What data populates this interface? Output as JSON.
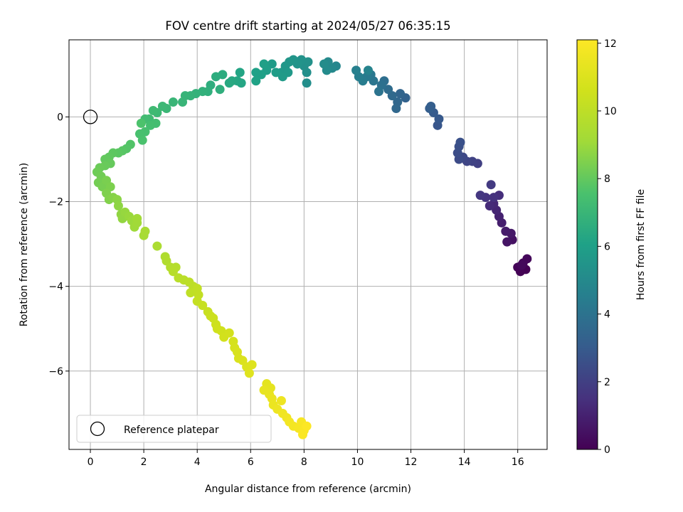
{
  "chart_data": {
    "type": "scatter",
    "title": "FOV centre drift starting at 2024/05/27 06:35:15",
    "xlabel": "Angular distance from reference (arcmin)",
    "ylabel": "Rotation from reference (arcmin)",
    "xlim": [
      -0.8,
      17.1
    ],
    "ylim": [
      -7.85,
      1.82
    ],
    "xticks": [
      0,
      2,
      4,
      6,
      8,
      10,
      12,
      14,
      16
    ],
    "yticks": [
      -6,
      -4,
      -2,
      0
    ],
    "grid": true,
    "legend": {
      "placement": "lower-left",
      "entries": [
        "Reference platepar"
      ]
    },
    "colorbar": {
      "label": "Hours from first FF file",
      "range": [
        0,
        12.1
      ],
      "ticks": [
        0,
        2,
        4,
        6,
        8,
        10,
        12
      ],
      "colormap": "viridis"
    },
    "reference_point": {
      "x": 0,
      "y": 0
    },
    "series": [
      {
        "points": [
          [
            16.3,
            -3.6,
            0.0
          ],
          [
            16.1,
            -3.65,
            0.05
          ],
          [
            16.0,
            -3.55,
            0.1
          ],
          [
            16.2,
            -3.45,
            0.15
          ],
          [
            16.35,
            -3.35,
            0.2
          ],
          [
            16.15,
            -3.5,
            0.25
          ],
          [
            15.8,
            -2.9,
            0.5
          ],
          [
            15.6,
            -2.95,
            0.6
          ],
          [
            15.75,
            -2.75,
            0.7
          ],
          [
            15.55,
            -2.7,
            0.8
          ],
          [
            15.4,
            -2.5,
            0.9
          ],
          [
            15.3,
            -2.35,
            1.0
          ],
          [
            15.2,
            -2.2,
            1.1
          ],
          [
            15.1,
            -2.05,
            1.2
          ],
          [
            14.95,
            -2.1,
            1.3
          ],
          [
            15.3,
            -1.85,
            1.4
          ],
          [
            15.1,
            -1.9,
            1.5
          ],
          [
            14.8,
            -1.9,
            1.6
          ],
          [
            14.6,
            -1.85,
            1.7
          ],
          [
            15.0,
            -1.6,
            1.8
          ],
          [
            14.5,
            -1.1,
            2.0
          ],
          [
            14.3,
            -1.05,
            2.1
          ],
          [
            14.1,
            -1.05,
            2.2
          ],
          [
            13.95,
            -0.95,
            2.3
          ],
          [
            13.8,
            -1.0,
            2.4
          ],
          [
            13.75,
            -0.85,
            2.5
          ],
          [
            13.8,
            -0.7,
            2.55
          ],
          [
            13.85,
            -0.6,
            2.6
          ],
          [
            13.0,
            -0.2,
            2.8
          ],
          [
            13.05,
            -0.05,
            2.9
          ],
          [
            12.85,
            0.1,
            3.0
          ],
          [
            12.7,
            0.2,
            3.1
          ],
          [
            12.75,
            0.25,
            3.15
          ],
          [
            11.8,
            0.45,
            3.3
          ],
          [
            11.6,
            0.55,
            3.4
          ],
          [
            11.5,
            0.35,
            3.5
          ],
          [
            11.45,
            0.2,
            3.55
          ],
          [
            11.3,
            0.5,
            3.6
          ],
          [
            11.15,
            0.65,
            3.7
          ],
          [
            11.0,
            0.85,
            3.8
          ],
          [
            10.9,
            0.75,
            3.9
          ],
          [
            10.8,
            0.6,
            4.0
          ],
          [
            10.6,
            0.85,
            4.1
          ],
          [
            10.5,
            1.0,
            4.2
          ],
          [
            10.35,
            0.95,
            4.3
          ],
          [
            10.2,
            0.85,
            4.4
          ],
          [
            10.05,
            0.95,
            4.5
          ],
          [
            9.95,
            1.1,
            4.6
          ],
          [
            10.4,
            1.1,
            4.7
          ],
          [
            9.2,
            1.2,
            4.85
          ],
          [
            9.05,
            1.15,
            4.95
          ],
          [
            8.9,
            1.3,
            5.0
          ],
          [
            8.85,
            1.1,
            5.05
          ],
          [
            8.75,
            1.25,
            5.1
          ],
          [
            8.1,
            0.8,
            5.2
          ],
          [
            8.1,
            1.05,
            5.25
          ],
          [
            8.0,
            1.2,
            5.3
          ],
          [
            8.15,
            1.3,
            5.35
          ],
          [
            7.9,
            1.35,
            5.4
          ],
          [
            7.75,
            1.25,
            5.45
          ],
          [
            7.6,
            1.35,
            5.5
          ],
          [
            7.45,
            1.3,
            5.55
          ],
          [
            7.3,
            1.2,
            5.6
          ],
          [
            7.15,
            1.05,
            5.65
          ],
          [
            7.4,
            1.05,
            5.7
          ],
          [
            7.2,
            0.95,
            5.75
          ],
          [
            6.8,
            1.25,
            5.8
          ],
          [
            6.95,
            1.05,
            5.85
          ],
          [
            6.6,
            1.1,
            5.9
          ],
          [
            6.5,
            1.25,
            5.95
          ],
          [
            6.4,
            1.0,
            6.0
          ],
          [
            6.2,
            1.05,
            6.05
          ],
          [
            6.2,
            0.85,
            6.1
          ],
          [
            5.6,
            1.05,
            6.2
          ],
          [
            5.65,
            0.8,
            6.25
          ],
          [
            5.5,
            0.85,
            6.3
          ],
          [
            5.3,
            0.85,
            6.35
          ],
          [
            5.2,
            0.8,
            6.4
          ],
          [
            4.95,
            1.0,
            6.5
          ],
          [
            4.7,
            0.95,
            6.55
          ],
          [
            4.5,
            0.75,
            6.6
          ],
          [
            4.85,
            0.65,
            6.65
          ],
          [
            4.4,
            0.6,
            6.7
          ],
          [
            4.2,
            0.6,
            6.75
          ],
          [
            3.95,
            0.55,
            6.8
          ],
          [
            3.75,
            0.5,
            6.85
          ],
          [
            3.55,
            0.5,
            6.9
          ],
          [
            3.45,
            0.35,
            6.95
          ],
          [
            3.1,
            0.35,
            7.0
          ],
          [
            2.85,
            0.2,
            7.05
          ],
          [
            2.7,
            0.25,
            7.1
          ],
          [
            2.5,
            0.1,
            7.15
          ],
          [
            2.35,
            0.15,
            7.2
          ],
          [
            2.2,
            -0.05,
            7.25
          ],
          [
            2.05,
            -0.05,
            7.3
          ],
          [
            2.45,
            -0.15,
            7.35
          ],
          [
            2.25,
            -0.2,
            7.4
          ],
          [
            2.05,
            -0.35,
            7.45
          ],
          [
            1.85,
            -0.4,
            7.5
          ],
          [
            1.95,
            -0.55,
            7.55
          ],
          [
            1.9,
            -0.15,
            7.6
          ],
          [
            1.5,
            -0.65,
            7.7
          ],
          [
            1.35,
            -0.75,
            7.75
          ],
          [
            1.2,
            -0.8,
            7.8
          ],
          [
            1.05,
            -0.85,
            7.85
          ],
          [
            0.85,
            -0.85,
            7.9
          ],
          [
            0.7,
            -0.95,
            7.95
          ],
          [
            0.55,
            -1.0,
            8.0
          ],
          [
            0.75,
            -1.1,
            8.05
          ],
          [
            0.55,
            -1.15,
            8.1
          ],
          [
            0.35,
            -1.2,
            8.15
          ],
          [
            0.25,
            -1.3,
            8.2
          ],
          [
            0.4,
            -1.4,
            8.25
          ],
          [
            0.3,
            -1.55,
            8.3
          ],
          [
            0.45,
            -1.65,
            8.35
          ],
          [
            0.6,
            -1.5,
            8.4
          ],
          [
            0.75,
            -1.65,
            8.45
          ],
          [
            0.6,
            -1.8,
            8.5
          ],
          [
            0.7,
            -1.95,
            8.55
          ],
          [
            0.85,
            -1.9,
            8.6
          ],
          [
            1.0,
            -1.95,
            8.7
          ],
          [
            1.05,
            -2.1,
            8.75
          ],
          [
            1.15,
            -2.3,
            8.8
          ],
          [
            1.2,
            -2.4,
            8.85
          ],
          [
            1.3,
            -2.25,
            8.9
          ],
          [
            1.45,
            -2.35,
            8.95
          ],
          [
            1.55,
            -2.45,
            9.0
          ],
          [
            1.65,
            -2.6,
            9.05
          ],
          [
            1.75,
            -2.5,
            9.1
          ],
          [
            1.75,
            -2.4,
            9.15
          ],
          [
            2.0,
            -2.8,
            9.3
          ],
          [
            2.05,
            -2.7,
            9.35
          ],
          [
            2.5,
            -3.05,
            9.45
          ],
          [
            2.8,
            -3.3,
            9.55
          ],
          [
            2.85,
            -3.4,
            9.6
          ],
          [
            3.0,
            -3.55,
            9.7
          ],
          [
            3.2,
            -3.55,
            9.75
          ],
          [
            3.1,
            -3.65,
            9.8
          ],
          [
            3.3,
            -3.8,
            9.85
          ],
          [
            3.5,
            -3.85,
            9.9
          ],
          [
            3.7,
            -3.9,
            9.95
          ],
          [
            3.85,
            -4.0,
            10.0
          ],
          [
            3.75,
            -4.15,
            10.05
          ],
          [
            4.0,
            -4.05,
            10.1
          ],
          [
            4.05,
            -4.2,
            10.15
          ],
          [
            4.0,
            -4.35,
            10.2
          ],
          [
            4.2,
            -4.45,
            10.3
          ],
          [
            4.4,
            -4.6,
            10.35
          ],
          [
            4.5,
            -4.7,
            10.4
          ],
          [
            4.6,
            -4.75,
            10.45
          ],
          [
            4.7,
            -4.9,
            10.5
          ],
          [
            4.75,
            -5.0,
            10.55
          ],
          [
            4.9,
            -5.05,
            10.6
          ],
          [
            5.0,
            -5.2,
            10.65
          ],
          [
            5.2,
            -5.1,
            10.7
          ],
          [
            5.35,
            -5.3,
            10.75
          ],
          [
            5.4,
            -5.45,
            10.8
          ],
          [
            5.5,
            -5.55,
            10.85
          ],
          [
            5.55,
            -5.7,
            10.9
          ],
          [
            5.7,
            -5.75,
            10.95
          ],
          [
            5.85,
            -5.9,
            11.0
          ],
          [
            6.05,
            -5.85,
            11.05
          ],
          [
            5.95,
            -6.05,
            11.1
          ],
          [
            6.6,
            -6.3,
            11.25
          ],
          [
            6.75,
            -6.4,
            11.3
          ],
          [
            6.5,
            -6.45,
            11.35
          ],
          [
            6.7,
            -6.55,
            11.4
          ],
          [
            6.8,
            -6.65,
            11.45
          ],
          [
            6.85,
            -6.8,
            11.5
          ],
          [
            7.0,
            -6.9,
            11.55
          ],
          [
            7.15,
            -6.7,
            11.6
          ],
          [
            7.2,
            -7.0,
            11.65
          ],
          [
            7.35,
            -7.1,
            11.7
          ],
          [
            7.45,
            -7.2,
            11.75
          ],
          [
            7.6,
            -7.3,
            11.8
          ],
          [
            7.8,
            -7.35,
            11.85
          ],
          [
            7.9,
            -7.2,
            11.9
          ],
          [
            8.0,
            -7.4,
            11.95
          ],
          [
            7.95,
            -7.5,
            12.0
          ],
          [
            8.1,
            -7.3,
            12.05
          ]
        ]
      }
    ]
  }
}
